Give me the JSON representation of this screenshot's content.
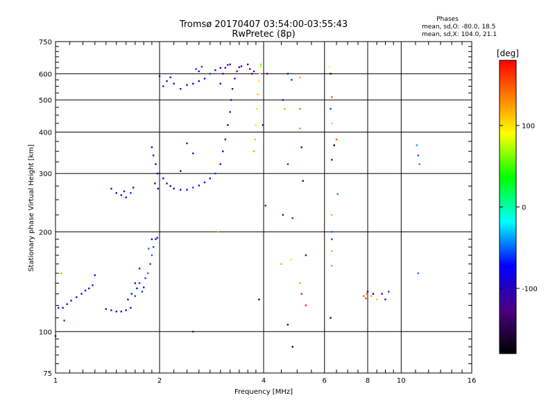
{
  "chart_data": {
    "type": "scatter",
    "title": "Tromsø 20170407 03:54:00-03:55:43",
    "subtitle": "RwPretec (8p)",
    "xlabel": "Frequency [MHz]",
    "ylabel": "Stationary phase Virtual Height [km]",
    "x_scale": "log",
    "y_scale": "log",
    "xlim": [
      1,
      16
    ],
    "ylim": [
      75,
      750
    ],
    "x_ticks": [
      1,
      2,
      4,
      6,
      8,
      10,
      16
    ],
    "y_ticks": [
      75,
      100,
      200,
      300,
      400,
      500,
      600,
      750
    ],
    "x_gridlines": [
      2,
      4,
      6,
      8,
      10
    ],
    "y_gridlines": [
      100,
      200,
      300,
      400,
      500,
      600
    ],
    "grid": true,
    "legend": {
      "heading": "Phases",
      "lines": [
        "mean, sd,O: -80.0, 18.5",
        "mean, sd,X: 104.0, 21.1"
      ],
      "placement": "top-right"
    },
    "colorbar": {
      "label": "[deg]",
      "range": [
        -180,
        180
      ],
      "ticks": [
        100,
        0,
        -100
      ]
    },
    "point_color_scale": "phase in degrees mapped to rainbow colorbar",
    "points": [
      [
        1.0,
        97,
        -120
      ],
      [
        1.02,
        118,
        -90
      ],
      [
        1.04,
        150,
        120
      ],
      [
        1.06,
        108,
        -60
      ],
      [
        1.05,
        118,
        -70
      ],
      [
        1.08,
        121,
        -90
      ],
      [
        1.11,
        124,
        -80
      ],
      [
        1.15,
        127,
        -90
      ],
      [
        1.19,
        130,
        -80
      ],
      [
        1.22,
        133,
        -70
      ],
      [
        1.25,
        135,
        -90
      ],
      [
        1.28,
        138,
        -70
      ],
      [
        1.3,
        148,
        -70
      ],
      [
        1.4,
        117,
        -100
      ],
      [
        1.45,
        116,
        -100
      ],
      [
        1.5,
        115,
        -110
      ],
      [
        1.55,
        115,
        -100
      ],
      [
        1.6,
        116,
        -90
      ],
      [
        1.65,
        118,
        -80
      ],
      [
        1.62,
        125,
        -80
      ],
      [
        1.66,
        130,
        -70
      ],
      [
        1.7,
        128,
        -60
      ],
      [
        1.72,
        135,
        -70
      ],
      [
        1.75,
        140,
        -60
      ],
      [
        1.78,
        132,
        -60
      ],
      [
        1.8,
        136,
        -70
      ],
      [
        1.82,
        145,
        -60
      ],
      [
        1.85,
        150,
        -50
      ],
      [
        1.88,
        160,
        -60
      ],
      [
        1.9,
        170,
        -50
      ],
      [
        1.92,
        180,
        -60
      ],
      [
        1.95,
        190,
        -90
      ],
      [
        1.97,
        192,
        -110
      ],
      [
        1.9,
        190,
        -70
      ],
      [
        1.86,
        178,
        -50
      ],
      [
        1.75,
        155,
        -70
      ],
      [
        1.7,
        140,
        -80
      ],
      [
        1.45,
        270,
        -90
      ],
      [
        1.5,
        262,
        -80
      ],
      [
        1.55,
        258,
        -70
      ],
      [
        1.6,
        254,
        -80
      ],
      [
        1.65,
        262,
        -60
      ],
      [
        1.68,
        272,
        -70
      ],
      [
        1.58,
        265,
        -100
      ],
      [
        1.9,
        360,
        -110
      ],
      [
        1.92,
        340,
        -100
      ],
      [
        1.95,
        320,
        -90
      ],
      [
        1.97,
        300,
        -100
      ],
      [
        1.94,
        280,
        -80
      ],
      [
        1.98,
        270,
        -90
      ],
      [
        2.0,
        300,
        -110
      ],
      [
        2.05,
        290,
        -100
      ],
      [
        2.1,
        280,
        -100
      ],
      [
        2.15,
        275,
        -80
      ],
      [
        2.2,
        270,
        -90
      ],
      [
        2.3,
        268,
        -70
      ],
      [
        2.4,
        268,
        -80
      ],
      [
        2.5,
        272,
        -60
      ],
      [
        2.6,
        276,
        -70
      ],
      [
        2.7,
        282,
        -80
      ],
      [
        2.8,
        290,
        -70
      ],
      [
        2.9,
        300,
        -60
      ],
      [
        3.0,
        320,
        -70
      ],
      [
        3.05,
        350,
        -80
      ],
      [
        3.1,
        380,
        -90
      ],
      [
        3.15,
        420,
        -90
      ],
      [
        3.2,
        460,
        -100
      ],
      [
        3.22,
        500,
        -100
      ],
      [
        3.25,
        540,
        -110
      ],
      [
        3.3,
        580,
        -110
      ],
      [
        3.35,
        610,
        -110
      ],
      [
        3.4,
        628,
        -120
      ],
      [
        3.45,
        632,
        -110
      ],
      [
        3.0,
        560,
        -100
      ],
      [
        3.05,
        600,
        -110
      ],
      [
        3.1,
        625,
        -120
      ],
      [
        3.15,
        638,
        -110
      ],
      [
        3.2,
        640,
        -120
      ],
      [
        2.05,
        550,
        -100
      ],
      [
        2.1,
        570,
        -90
      ],
      [
        2.15,
        585,
        -80
      ],
      [
        2.2,
        560,
        -100
      ],
      [
        2.3,
        540,
        -110
      ],
      [
        2.4,
        555,
        -90
      ],
      [
        2.5,
        560,
        -80
      ],
      [
        2.6,
        570,
        -70
      ],
      [
        2.7,
        580,
        -70
      ],
      [
        2.8,
        600,
        -60
      ],
      [
        2.9,
        615,
        -70
      ],
      [
        3.0,
        625,
        -80
      ],
      [
        2.55,
        620,
        -60
      ],
      [
        2.6,
        610,
        -70
      ],
      [
        2.65,
        630,
        -60
      ],
      [
        2.4,
        370,
        -110
      ],
      [
        2.5,
        345,
        -100
      ],
      [
        2.3,
        305,
        -90
      ],
      [
        2.0,
        590,
        -100
      ],
      [
        3.6,
        640,
        -110
      ],
      [
        3.65,
        620,
        -120
      ],
      [
        3.7,
        600,
        -110
      ],
      [
        3.75,
        610,
        -100
      ],
      [
        3.75,
        350,
        120
      ],
      [
        3.78,
        380,
        110
      ],
      [
        3.8,
        420,
        100
      ],
      [
        3.82,
        470,
        100
      ],
      [
        3.85,
        520,
        110
      ],
      [
        3.88,
        570,
        100
      ],
      [
        3.9,
        600,
        90
      ],
      [
        3.92,
        630,
        80
      ],
      [
        3.93,
        640,
        60
      ],
      [
        3.98,
        420,
        -150
      ],
      [
        4.1,
        600,
        -120
      ],
      [
        4.55,
        500,
        -120
      ],
      [
        4.6,
        470,
        120
      ],
      [
        4.55,
        225,
        -110
      ],
      [
        4.7,
        600,
        -80
      ],
      [
        4.7,
        320,
        -60
      ],
      [
        4.82,
        575,
        -60
      ],
      [
        4.85,
        220,
        -60
      ],
      [
        5.1,
        585,
        120
      ],
      [
        5.1,
        470,
        140
      ],
      [
        5.1,
        410,
        130
      ],
      [
        5.15,
        360,
        -120
      ],
      [
        5.2,
        285,
        -150
      ],
      [
        4.5,
        160,
        120
      ],
      [
        4.8,
        165,
        100
      ],
      [
        5.1,
        140,
        120
      ],
      [
        5.15,
        130,
        170
      ],
      [
        5.3,
        170,
        -110
      ],
      [
        5.3,
        120,
        170
      ],
      [
        4.7,
        105,
        -150
      ],
      [
        4.85,
        90,
        -170
      ],
      [
        4.05,
        240,
        -120
      ],
      [
        3.88,
        125,
        -150
      ],
      [
        6.2,
        630,
        90
      ],
      [
        6.25,
        600,
        -150
      ],
      [
        6.3,
        510,
        150
      ],
      [
        6.25,
        470,
        -60
      ],
      [
        6.3,
        425,
        110
      ],
      [
        6.4,
        365,
        -180
      ],
      [
        6.5,
        380,
        150
      ],
      [
        6.3,
        330,
        -120
      ],
      [
        6.55,
        260,
        -40
      ],
      [
        6.3,
        225,
        120
      ],
      [
        6.3,
        200,
        -50
      ],
      [
        6.3,
        190,
        -60
      ],
      [
        6.3,
        175,
        120
      ],
      [
        6.3,
        158,
        130
      ],
      [
        6.25,
        110,
        -150
      ],
      [
        7.8,
        128,
        150
      ],
      [
        7.9,
        126,
        160
      ],
      [
        7.95,
        130,
        140
      ],
      [
        8.0,
        132,
        -80
      ],
      [
        8.2,
        128,
        120
      ],
      [
        8.3,
        130,
        -100
      ],
      [
        8.5,
        125,
        110
      ],
      [
        8.8,
        130,
        -100
      ],
      [
        9.0,
        125,
        -80
      ],
      [
        9.2,
        132,
        -60
      ],
      [
        11.1,
        365,
        -40
      ],
      [
        11.2,
        340,
        -50
      ],
      [
        11.3,
        320,
        -40
      ],
      [
        11.2,
        150,
        -50
      ],
      [
        2.5,
        100,
        -120
      ],
      [
        2.95,
        200,
        60
      ]
    ]
  }
}
